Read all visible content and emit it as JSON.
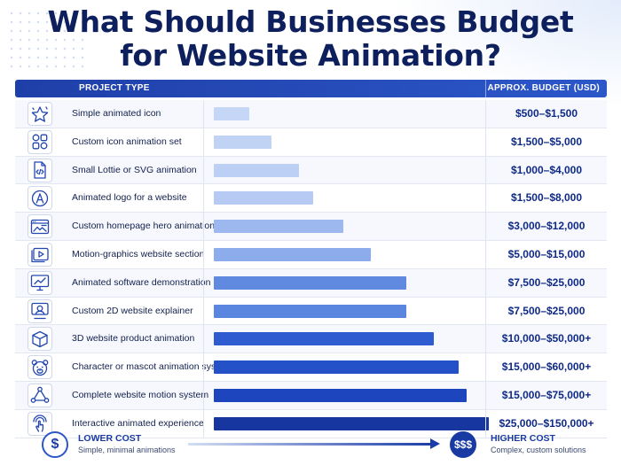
{
  "title": {
    "line1": "What Should Businesses Budget",
    "line2": "for Website Animation?"
  },
  "table_header": {
    "project_type": "PROJECT TYPE",
    "budget": "APPROX. BUDGET (USD)"
  },
  "rows": [
    {
      "label": "Simple animated icon",
      "budget": "$500–$1,500",
      "icon": "star-icon"
    },
    {
      "label": "Custom icon animation set",
      "budget": "$1,500–$5,000",
      "icon": "icon-grid-icon"
    },
    {
      "label": "Small Lottie or SVG animation",
      "budget": "$1,000–$4,000",
      "icon": "code-file-icon"
    },
    {
      "label": "Animated logo for a website",
      "budget": "$1,500–$8,000",
      "icon": "logo-a-icon"
    },
    {
      "label": "Custom homepage hero animation",
      "budget": "$3,000–$12,000",
      "icon": "browser-image-icon"
    },
    {
      "label": "Motion-graphics website section",
      "budget": "$5,000–$15,000",
      "icon": "video-play-icon"
    },
    {
      "label": "Animated software demonstration",
      "budget": "$7,500–$25,000",
      "icon": "monitor-chart-icon"
    },
    {
      "label": "Custom 2D website explainer",
      "budget": "$7,500–$25,000",
      "icon": "presenter-icon"
    },
    {
      "label": "3D website product animation",
      "budget": "$10,000–$50,000+",
      "icon": "cube-icon"
    },
    {
      "label": "Character or mascot animation system",
      "budget": "$15,000–$60,000+",
      "icon": "bear-mascot-icon"
    },
    {
      "label": "Complete website motion system",
      "budget": "$15,000–$75,000+",
      "icon": "network-nodes-icon"
    },
    {
      "label": "Interactive animated experience",
      "budget": "$25,000–$150,000+",
      "icon": "touch-gesture-icon"
    }
  ],
  "chart_data": {
    "type": "bar",
    "orientation": "horizontal",
    "title": "What Should Businesses Budget for Website Animation?",
    "categories": [
      "Simple animated icon",
      "Custom icon animation set",
      "Small Lottie or SVG animation",
      "Animated logo for a website",
      "Custom homepage hero animation",
      "Motion-graphics website section",
      "Animated software demonstration",
      "Custom 2D website explainer",
      "3D website product animation",
      "Character or mascot animation system",
      "Complete website motion system",
      "Interactive animated experience"
    ],
    "values": [
      0.13,
      0.21,
      0.31,
      0.36,
      0.47,
      0.57,
      0.7,
      0.7,
      0.8,
      0.89,
      0.92,
      1.0
    ],
    "value_labels": [
      "$500–$1,500",
      "$1,500–$5,000",
      "$1,000–$4,000",
      "$1,500–$8,000",
      "$3,000–$12,000",
      "$5,000–$15,000",
      "$7,500–$25,000",
      "$7,500–$25,000",
      "$10,000–$50,000+",
      "$15,000–$60,000+",
      "$15,000–$75,000+",
      "$25,000–$150,000+"
    ],
    "bar_colors": [
      "#c5d6f6",
      "#c1d3f5",
      "#bccff4",
      "#b6caf3",
      "#9db8ef",
      "#8dacec",
      "#5f8ae0",
      "#5a86df",
      "#2f5bd0",
      "#2450c8",
      "#1c45be",
      "#17369f"
    ],
    "grid": false,
    "legend": "none"
  },
  "footer": {
    "low_symbol": "$",
    "low_title": "LOWER COST",
    "low_sub": "Simple, minimal animations",
    "high_symbol": "$$$",
    "high_title": "HIGHER COST",
    "high_sub": "Complex, custom solutions"
  },
  "colors": {
    "title": "#0d1f5c",
    "header_bg": "#2546b4",
    "budget_text": "#0f2a86"
  }
}
